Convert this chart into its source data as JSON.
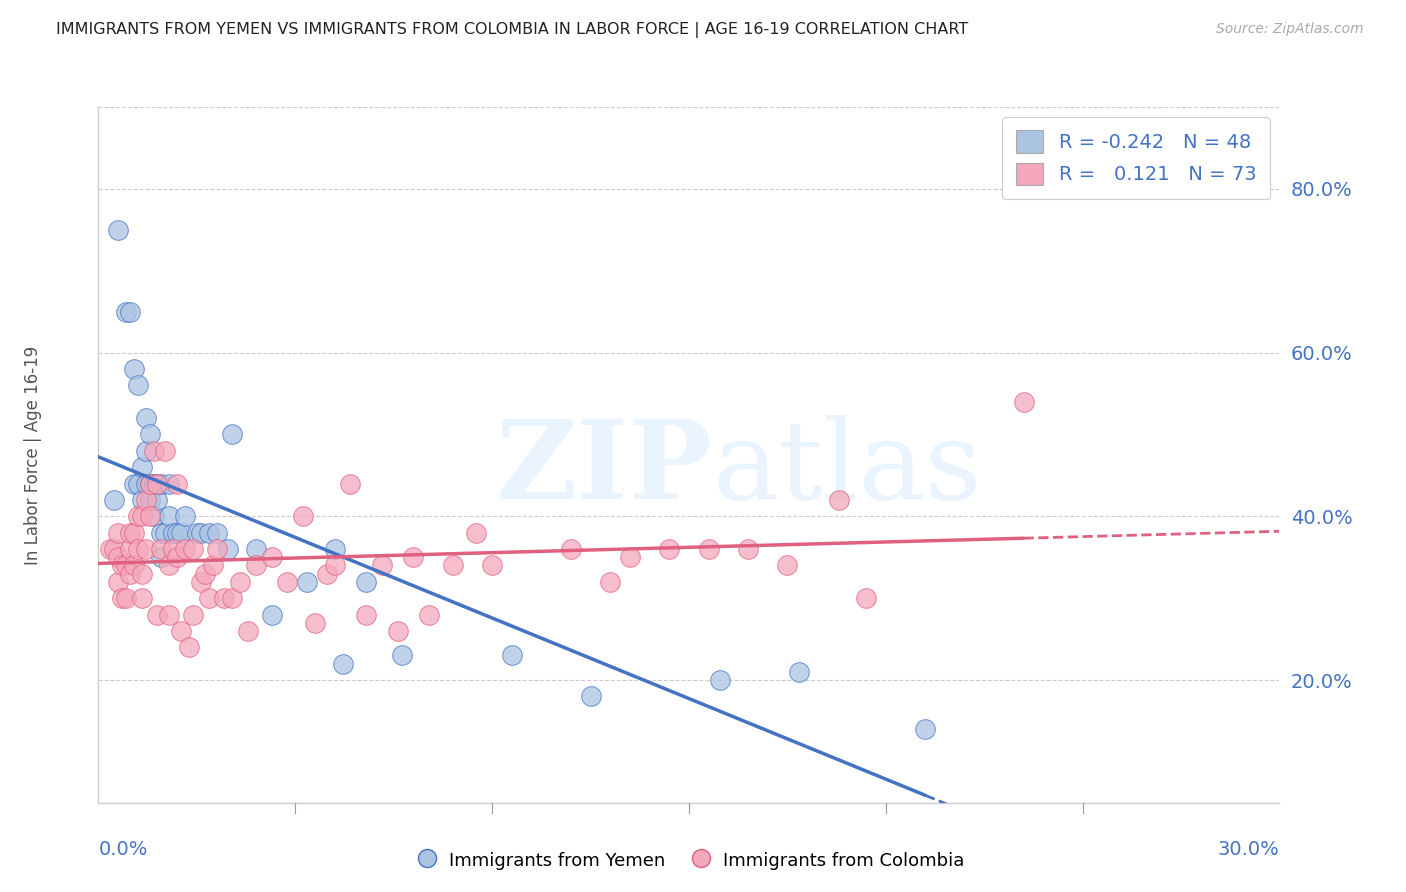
{
  "title": "IMMIGRANTS FROM YEMEN VS IMMIGRANTS FROM COLOMBIA IN LABOR FORCE | AGE 16-19 CORRELATION CHART",
  "source": "Source: ZipAtlas.com",
  "ylabel": "In Labor Force | Age 16-19",
  "xlim": [
    0.0,
    0.3
  ],
  "ylim": [
    0.05,
    0.9
  ],
  "yticks": [
    0.2,
    0.4,
    0.6,
    0.8
  ],
  "ytick_labels": [
    "20.0%",
    "40.0%",
    "60.0%",
    "80.0%"
  ],
  "legend_r_yemen": "-0.242",
  "legend_n_yemen": "48",
  "legend_r_colombia": "0.121",
  "legend_n_colombia": "73",
  "color_yemen": "#aac4e2",
  "color_colombia": "#f4a8bc",
  "trendline_yemen_color": "#4472c4",
  "trendline_colombia_color": "#e06080",
  "background_color": "#ffffff",
  "yemen_x": [
    0.004,
    0.005,
    0.007,
    0.008,
    0.009,
    0.009,
    0.01,
    0.01,
    0.011,
    0.011,
    0.012,
    0.012,
    0.012,
    0.013,
    0.013,
    0.013,
    0.014,
    0.014,
    0.015,
    0.015,
    0.016,
    0.016,
    0.016,
    0.017,
    0.018,
    0.018,
    0.019,
    0.02,
    0.021,
    0.022,
    0.025,
    0.026,
    0.028,
    0.03,
    0.033,
    0.034,
    0.04,
    0.044,
    0.053,
    0.06,
    0.062,
    0.068,
    0.077,
    0.105,
    0.125,
    0.158,
    0.178,
    0.21
  ],
  "yemen_y": [
    0.42,
    0.75,
    0.65,
    0.65,
    0.44,
    0.58,
    0.44,
    0.56,
    0.42,
    0.46,
    0.44,
    0.48,
    0.52,
    0.42,
    0.44,
    0.5,
    0.4,
    0.44,
    0.42,
    0.44,
    0.35,
    0.38,
    0.44,
    0.38,
    0.4,
    0.44,
    0.38,
    0.38,
    0.38,
    0.4,
    0.38,
    0.38,
    0.38,
    0.38,
    0.36,
    0.5,
    0.36,
    0.28,
    0.32,
    0.36,
    0.22,
    0.32,
    0.23,
    0.23,
    0.18,
    0.2,
    0.21,
    0.14
  ],
  "colombia_x": [
    0.003,
    0.004,
    0.005,
    0.005,
    0.005,
    0.006,
    0.006,
    0.007,
    0.007,
    0.008,
    0.008,
    0.008,
    0.009,
    0.009,
    0.01,
    0.01,
    0.011,
    0.011,
    0.011,
    0.012,
    0.012,
    0.013,
    0.013,
    0.014,
    0.015,
    0.015,
    0.016,
    0.017,
    0.018,
    0.018,
    0.019,
    0.02,
    0.02,
    0.021,
    0.022,
    0.023,
    0.024,
    0.024,
    0.026,
    0.027,
    0.028,
    0.029,
    0.03,
    0.032,
    0.034,
    0.036,
    0.038,
    0.04,
    0.044,
    0.048,
    0.052,
    0.055,
    0.058,
    0.06,
    0.064,
    0.068,
    0.072,
    0.076,
    0.08,
    0.084,
    0.09,
    0.096,
    0.1,
    0.12,
    0.13,
    0.135,
    0.145,
    0.155,
    0.165,
    0.175,
    0.188,
    0.195,
    0.235
  ],
  "colombia_y": [
    0.36,
    0.36,
    0.32,
    0.35,
    0.38,
    0.3,
    0.34,
    0.3,
    0.34,
    0.33,
    0.36,
    0.38,
    0.34,
    0.38,
    0.36,
    0.4,
    0.3,
    0.33,
    0.4,
    0.36,
    0.42,
    0.4,
    0.44,
    0.48,
    0.44,
    0.28,
    0.36,
    0.48,
    0.28,
    0.34,
    0.36,
    0.35,
    0.44,
    0.26,
    0.36,
    0.24,
    0.28,
    0.36,
    0.32,
    0.33,
    0.3,
    0.34,
    0.36,
    0.3,
    0.3,
    0.32,
    0.26,
    0.34,
    0.35,
    0.32,
    0.4,
    0.27,
    0.33,
    0.34,
    0.44,
    0.28,
    0.34,
    0.26,
    0.35,
    0.28,
    0.34,
    0.38,
    0.34,
    0.36,
    0.32,
    0.35,
    0.36,
    0.36,
    0.36,
    0.34,
    0.42,
    0.3,
    0.54
  ]
}
